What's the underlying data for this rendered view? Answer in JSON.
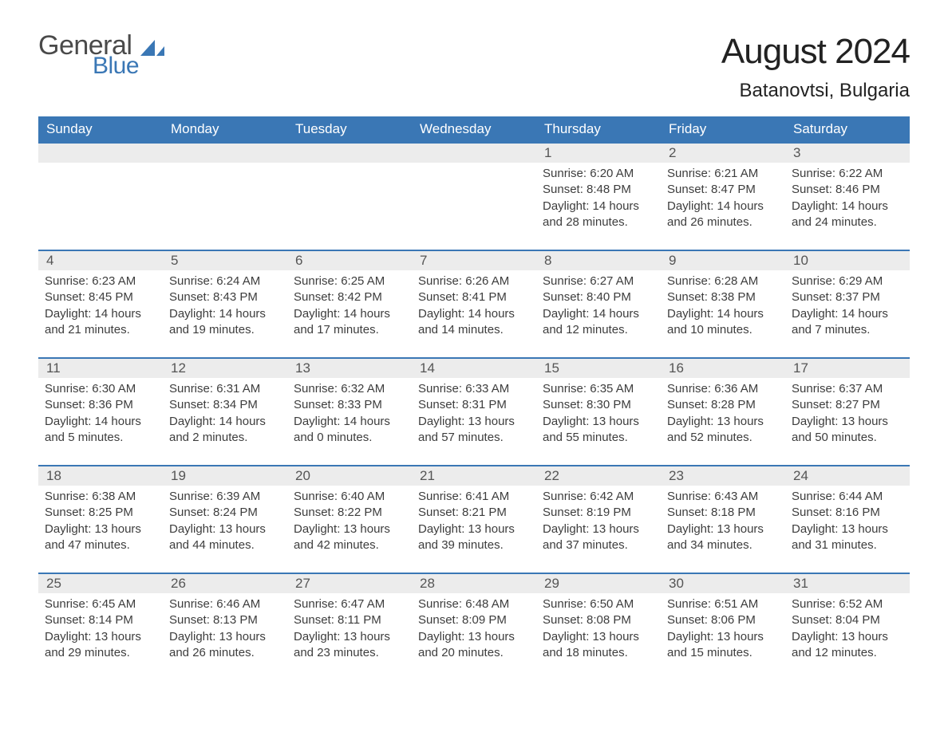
{
  "logo": {
    "word1": "General",
    "word2": "Blue",
    "icon_color": "#3a77b5",
    "text_gray": "#4a4a4a"
  },
  "title": "August 2024",
  "location": "Batanovtsi, Bulgaria",
  "colors": {
    "header_bg": "#3a77b5",
    "header_text": "#ffffff",
    "daynum_bg": "#ececec",
    "daynum_text": "#555555",
    "body_text": "#3d3d3d",
    "rule": "#3a77b5",
    "background": "#ffffff"
  },
  "typography": {
    "title_fontsize": 44,
    "location_fontsize": 24,
    "dow_fontsize": 17,
    "daynum_fontsize": 17,
    "data_fontsize": 15
  },
  "days_of_week": [
    "Sunday",
    "Monday",
    "Tuesday",
    "Wednesday",
    "Thursday",
    "Friday",
    "Saturday"
  ],
  "weeks": [
    [
      {
        "empty": true
      },
      {
        "empty": true
      },
      {
        "empty": true
      },
      {
        "empty": true
      },
      {
        "n": "1",
        "sunrise": "6:20 AM",
        "sunset": "8:48 PM",
        "daylight": "14 hours and 28 minutes."
      },
      {
        "n": "2",
        "sunrise": "6:21 AM",
        "sunset": "8:47 PM",
        "daylight": "14 hours and 26 minutes."
      },
      {
        "n": "3",
        "sunrise": "6:22 AM",
        "sunset": "8:46 PM",
        "daylight": "14 hours and 24 minutes."
      }
    ],
    [
      {
        "n": "4",
        "sunrise": "6:23 AM",
        "sunset": "8:45 PM",
        "daylight": "14 hours and 21 minutes."
      },
      {
        "n": "5",
        "sunrise": "6:24 AM",
        "sunset": "8:43 PM",
        "daylight": "14 hours and 19 minutes."
      },
      {
        "n": "6",
        "sunrise": "6:25 AM",
        "sunset": "8:42 PM",
        "daylight": "14 hours and 17 minutes."
      },
      {
        "n": "7",
        "sunrise": "6:26 AM",
        "sunset": "8:41 PM",
        "daylight": "14 hours and 14 minutes."
      },
      {
        "n": "8",
        "sunrise": "6:27 AM",
        "sunset": "8:40 PM",
        "daylight": "14 hours and 12 minutes."
      },
      {
        "n": "9",
        "sunrise": "6:28 AM",
        "sunset": "8:38 PM",
        "daylight": "14 hours and 10 minutes."
      },
      {
        "n": "10",
        "sunrise": "6:29 AM",
        "sunset": "8:37 PM",
        "daylight": "14 hours and 7 minutes."
      }
    ],
    [
      {
        "n": "11",
        "sunrise": "6:30 AM",
        "sunset": "8:36 PM",
        "daylight": "14 hours and 5 minutes."
      },
      {
        "n": "12",
        "sunrise": "6:31 AM",
        "sunset": "8:34 PM",
        "daylight": "14 hours and 2 minutes."
      },
      {
        "n": "13",
        "sunrise": "6:32 AM",
        "sunset": "8:33 PM",
        "daylight": "14 hours and 0 minutes."
      },
      {
        "n": "14",
        "sunrise": "6:33 AM",
        "sunset": "8:31 PM",
        "daylight": "13 hours and 57 minutes."
      },
      {
        "n": "15",
        "sunrise": "6:35 AM",
        "sunset": "8:30 PM",
        "daylight": "13 hours and 55 minutes."
      },
      {
        "n": "16",
        "sunrise": "6:36 AM",
        "sunset": "8:28 PM",
        "daylight": "13 hours and 52 minutes."
      },
      {
        "n": "17",
        "sunrise": "6:37 AM",
        "sunset": "8:27 PM",
        "daylight": "13 hours and 50 minutes."
      }
    ],
    [
      {
        "n": "18",
        "sunrise": "6:38 AM",
        "sunset": "8:25 PM",
        "daylight": "13 hours and 47 minutes."
      },
      {
        "n": "19",
        "sunrise": "6:39 AM",
        "sunset": "8:24 PM",
        "daylight": "13 hours and 44 minutes."
      },
      {
        "n": "20",
        "sunrise": "6:40 AM",
        "sunset": "8:22 PM",
        "daylight": "13 hours and 42 minutes."
      },
      {
        "n": "21",
        "sunrise": "6:41 AM",
        "sunset": "8:21 PM",
        "daylight": "13 hours and 39 minutes."
      },
      {
        "n": "22",
        "sunrise": "6:42 AM",
        "sunset": "8:19 PM",
        "daylight": "13 hours and 37 minutes."
      },
      {
        "n": "23",
        "sunrise": "6:43 AM",
        "sunset": "8:18 PM",
        "daylight": "13 hours and 34 minutes."
      },
      {
        "n": "24",
        "sunrise": "6:44 AM",
        "sunset": "8:16 PM",
        "daylight": "13 hours and 31 minutes."
      }
    ],
    [
      {
        "n": "25",
        "sunrise": "6:45 AM",
        "sunset": "8:14 PM",
        "daylight": "13 hours and 29 minutes."
      },
      {
        "n": "26",
        "sunrise": "6:46 AM",
        "sunset": "8:13 PM",
        "daylight": "13 hours and 26 minutes."
      },
      {
        "n": "27",
        "sunrise": "6:47 AM",
        "sunset": "8:11 PM",
        "daylight": "13 hours and 23 minutes."
      },
      {
        "n": "28",
        "sunrise": "6:48 AM",
        "sunset": "8:09 PM",
        "daylight": "13 hours and 20 minutes."
      },
      {
        "n": "29",
        "sunrise": "6:50 AM",
        "sunset": "8:08 PM",
        "daylight": "13 hours and 18 minutes."
      },
      {
        "n": "30",
        "sunrise": "6:51 AM",
        "sunset": "8:06 PM",
        "daylight": "13 hours and 15 minutes."
      },
      {
        "n": "31",
        "sunrise": "6:52 AM",
        "sunset": "8:04 PM",
        "daylight": "13 hours and 12 minutes."
      }
    ]
  ],
  "labels": {
    "sunrise": "Sunrise:",
    "sunset": "Sunset:",
    "daylight": "Daylight:"
  }
}
